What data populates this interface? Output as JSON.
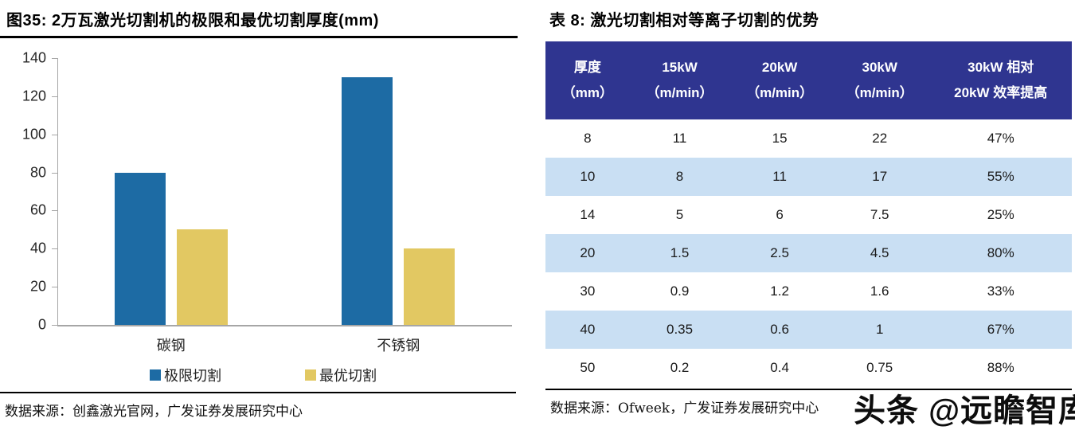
{
  "left_panel": {
    "title": "图35:  2万瓦激光切割机的极限和最优切割厚度(mm)",
    "source": "数据来源：创鑫激光官网，广发证券发展研究中心"
  },
  "right_panel": {
    "title": "表 8:  激光切割相对等离子切割的优势",
    "source": "数据来源：Ofweek，广发证券发展研究中心",
    "table": {
      "header_bg": "#2F3590",
      "stripe_bg": "#C9DFF3",
      "header": [
        [
          "厚度",
          "（mm）"
        ],
        [
          "15kW",
          "（m/min）"
        ],
        [
          "20kW",
          "（m/min）"
        ],
        [
          "30kW",
          "（m/min）"
        ],
        [
          "30kW 相对",
          "20kW 效率提高"
        ]
      ],
      "rows": [
        [
          "8",
          "11",
          "15",
          "22",
          "47%"
        ],
        [
          "10",
          "8",
          "11",
          "17",
          "55%"
        ],
        [
          "14",
          "5",
          "6",
          "7.5",
          "25%"
        ],
        [
          "20",
          "1.5",
          "2.5",
          "4.5",
          "80%"
        ],
        [
          "30",
          "0.9",
          "1.2",
          "1.6",
          "33%"
        ],
        [
          "40",
          "0.35",
          "0.6",
          "1",
          "67%"
        ],
        [
          "50",
          "0.2",
          "0.4",
          "0.75",
          "88%"
        ]
      ]
    }
  },
  "watermark": "头条 @远瞻智库",
  "chart_data": {
    "type": "bar",
    "title": "2万瓦激光切割机的极限和最优切割厚度(mm)",
    "categories": [
      "碳钢",
      "不锈钢"
    ],
    "series": [
      {
        "name": "极限切割",
        "color": "#1D6BA4",
        "values": [
          80,
          130
        ]
      },
      {
        "name": "最优切割",
        "color": "#E2C862",
        "values": [
          50,
          40
        ]
      }
    ],
    "xlabel": "",
    "ylabel": "",
    "ylim": [
      0,
      140
    ],
    "ytick_step": 20,
    "grid": false,
    "legend_position": "bottom",
    "axis_color": "#a6a6a6"
  }
}
